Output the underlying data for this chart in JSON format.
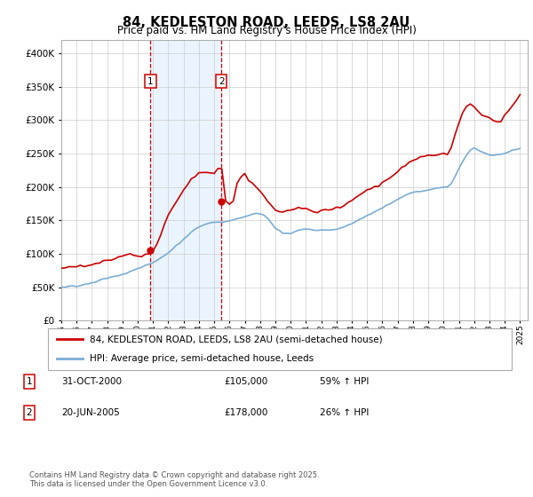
{
  "title": "84, KEDLESTON ROAD, LEEDS, LS8 2AU",
  "subtitle": "Price paid vs. HM Land Registry's House Price Index (HPI)",
  "legend_line1": "84, KEDLESTON ROAD, LEEDS, LS8 2AU (semi-detached house)",
  "legend_line2": "HPI: Average price, semi-detached house, Leeds",
  "footnote": "Contains HM Land Registry data © Crown copyright and database right 2025.\nThis data is licensed under the Open Government Licence v3.0.",
  "table": [
    {
      "num": "1",
      "date": "31-OCT-2000",
      "price": "£105,000",
      "hpi": "59% ↑ HPI"
    },
    {
      "num": "2",
      "date": "20-JUN-2005",
      "price": "£178,000",
      "hpi": "26% ↑ HPI"
    }
  ],
  "purchase1_year": 2000.83,
  "purchase1_price": 105000,
  "purchase2_year": 2005.47,
  "purchase2_price": 178000,
  "red_line_color": "#cc0000",
  "blue_line_color": "#7aadd4",
  "vline_color": "#cc0000",
  "shade_color": "#ddeeff",
  "grid_color": "#cccccc",
  "hpi_x": [
    1995.0,
    1995.25,
    1995.5,
    1995.75,
    1996.0,
    1996.25,
    1996.5,
    1996.75,
    1997.0,
    1997.25,
    1997.5,
    1997.75,
    1998.0,
    1998.25,
    1998.5,
    1998.75,
    1999.0,
    1999.25,
    1999.5,
    1999.75,
    2000.0,
    2000.25,
    2000.5,
    2000.75,
    2001.0,
    2001.25,
    2001.5,
    2001.75,
    2002.0,
    2002.25,
    2002.5,
    2002.75,
    2003.0,
    2003.25,
    2003.5,
    2003.75,
    2004.0,
    2004.25,
    2004.5,
    2004.75,
    2005.0,
    2005.25,
    2005.5,
    2005.75,
    2006.0,
    2006.25,
    2006.5,
    2006.75,
    2007.0,
    2007.25,
    2007.5,
    2007.75,
    2008.0,
    2008.25,
    2008.5,
    2008.75,
    2009.0,
    2009.25,
    2009.5,
    2009.75,
    2010.0,
    2010.25,
    2010.5,
    2010.75,
    2011.0,
    2011.25,
    2011.5,
    2011.75,
    2012.0,
    2012.25,
    2012.5,
    2012.75,
    2013.0,
    2013.25,
    2013.5,
    2013.75,
    2014.0,
    2014.25,
    2014.5,
    2014.75,
    2015.0,
    2015.25,
    2015.5,
    2015.75,
    2016.0,
    2016.25,
    2016.5,
    2016.75,
    2017.0,
    2017.25,
    2017.5,
    2017.75,
    2018.0,
    2018.25,
    2018.5,
    2018.75,
    2019.0,
    2019.25,
    2019.5,
    2019.75,
    2020.0,
    2020.25,
    2020.5,
    2020.75,
    2021.0,
    2021.25,
    2021.5,
    2021.75,
    2022.0,
    2022.25,
    2022.5,
    2022.75,
    2023.0,
    2023.25,
    2023.5,
    2023.75,
    2024.0,
    2024.25,
    2024.5,
    2024.75,
    2025.0
  ],
  "hpi_y": [
    50000,
    50500,
    51000,
    51500,
    52000,
    53000,
    54000,
    55000,
    56500,
    58000,
    60000,
    62000,
    63000,
    64500,
    66000,
    67500,
    69000,
    71000,
    73000,
    75500,
    78000,
    80000,
    82000,
    84500,
    87000,
    90000,
    93500,
    97000,
    101000,
    106000,
    111000,
    116000,
    122000,
    127000,
    132000,
    136000,
    140000,
    143000,
    145000,
    146000,
    146500,
    147000,
    147500,
    148000,
    149000,
    150500,
    152000,
    153500,
    155000,
    157000,
    159000,
    160000,
    160500,
    158000,
    153000,
    146000,
    138000,
    134000,
    131000,
    130000,
    131000,
    133000,
    135000,
    136000,
    136500,
    136000,
    135500,
    135000,
    135000,
    135500,
    136000,
    136500,
    137000,
    138000,
    140000,
    142500,
    145000,
    148000,
    151000,
    154000,
    157000,
    160000,
    163000,
    166000,
    169000,
    172000,
    175000,
    178000,
    181000,
    184000,
    187000,
    190000,
    192000,
    193000,
    194000,
    195000,
    196000,
    197000,
    198000,
    199000,
    200000,
    199000,
    205000,
    215000,
    228000,
    238000,
    248000,
    255000,
    258000,
    256000,
    252000,
    250000,
    248000,
    248000,
    248000,
    249000,
    250000,
    252000,
    254000,
    256000,
    258000
  ],
  "red_x": [
    1995.0,
    1995.25,
    1995.5,
    1995.75,
    1996.0,
    1996.25,
    1996.5,
    1996.75,
    1997.0,
    1997.25,
    1997.5,
    1997.75,
    1998.0,
    1998.25,
    1998.5,
    1998.75,
    1999.0,
    1999.25,
    1999.5,
    1999.75,
    2000.0,
    2000.25,
    2000.5,
    2000.75,
    2001.0,
    2001.25,
    2001.5,
    2001.75,
    2002.0,
    2002.25,
    2002.5,
    2002.75,
    2003.0,
    2003.25,
    2003.5,
    2003.75,
    2004.0,
    2004.25,
    2004.5,
    2004.75,
    2005.0,
    2005.25,
    2005.5,
    2005.75,
    2006.0,
    2006.25,
    2006.5,
    2006.75,
    2007.0,
    2007.25,
    2007.5,
    2007.75,
    2008.0,
    2008.25,
    2008.5,
    2008.75,
    2009.0,
    2009.25,
    2009.5,
    2009.75,
    2010.0,
    2010.25,
    2010.5,
    2010.75,
    2011.0,
    2011.25,
    2011.5,
    2011.75,
    2012.0,
    2012.25,
    2012.5,
    2012.75,
    2013.0,
    2013.25,
    2013.5,
    2013.75,
    2014.0,
    2014.25,
    2014.5,
    2014.75,
    2015.0,
    2015.25,
    2015.5,
    2015.75,
    2016.0,
    2016.25,
    2016.5,
    2016.75,
    2017.0,
    2017.25,
    2017.5,
    2017.75,
    2018.0,
    2018.25,
    2018.5,
    2018.75,
    2019.0,
    2019.25,
    2019.5,
    2019.75,
    2020.0,
    2020.25,
    2020.5,
    2020.75,
    2021.0,
    2021.25,
    2021.5,
    2021.75,
    2022.0,
    2022.25,
    2022.5,
    2022.75,
    2023.0,
    2023.25,
    2023.5,
    2023.75,
    2024.0,
    2024.25,
    2024.5,
    2024.75,
    2025.0
  ],
  "red_y": [
    78000,
    78500,
    79000,
    79500,
    80000,
    81000,
    82000,
    83000,
    84500,
    86000,
    87500,
    89000,
    90500,
    92000,
    93500,
    95000,
    95500,
    96000,
    96500,
    97000,
    97500,
    98000,
    99000,
    100500,
    105000,
    115000,
    128000,
    143000,
    158000,
    168000,
    178000,
    188000,
    196000,
    203000,
    210000,
    215000,
    220000,
    222000,
    223000,
    222000,
    221000,
    225000,
    228000,
    178000,
    175000,
    178000,
    205000,
    215000,
    220000,
    210000,
    205000,
    200000,
    195000,
    188000,
    178000,
    170000,
    165000,
    163000,
    162000,
    163000,
    165000,
    167000,
    168000,
    167000,
    166000,
    165000,
    164000,
    163000,
    163000,
    164000,
    165500,
    167000,
    168000,
    170000,
    173000,
    176000,
    180000,
    184000,
    188000,
    191000,
    194000,
    197000,
    200000,
    203000,
    207000,
    211000,
    215000,
    219000,
    223000,
    228000,
    233000,
    237000,
    240000,
    242000,
    244000,
    245000,
    246000,
    247000,
    248000,
    249000,
    250000,
    248000,
    260000,
    278000,
    295000,
    308000,
    318000,
    325000,
    320000,
    315000,
    308000,
    305000,
    302000,
    300000,
    298000,
    300000,
    308000,
    315000,
    322000,
    330000,
    338000
  ],
  "ylim": [
    0,
    420000
  ],
  "yticks": [
    0,
    50000,
    100000,
    150000,
    200000,
    250000,
    300000,
    350000,
    400000
  ],
  "xlim_left": 1995.0,
  "xlim_right": 2025.5
}
